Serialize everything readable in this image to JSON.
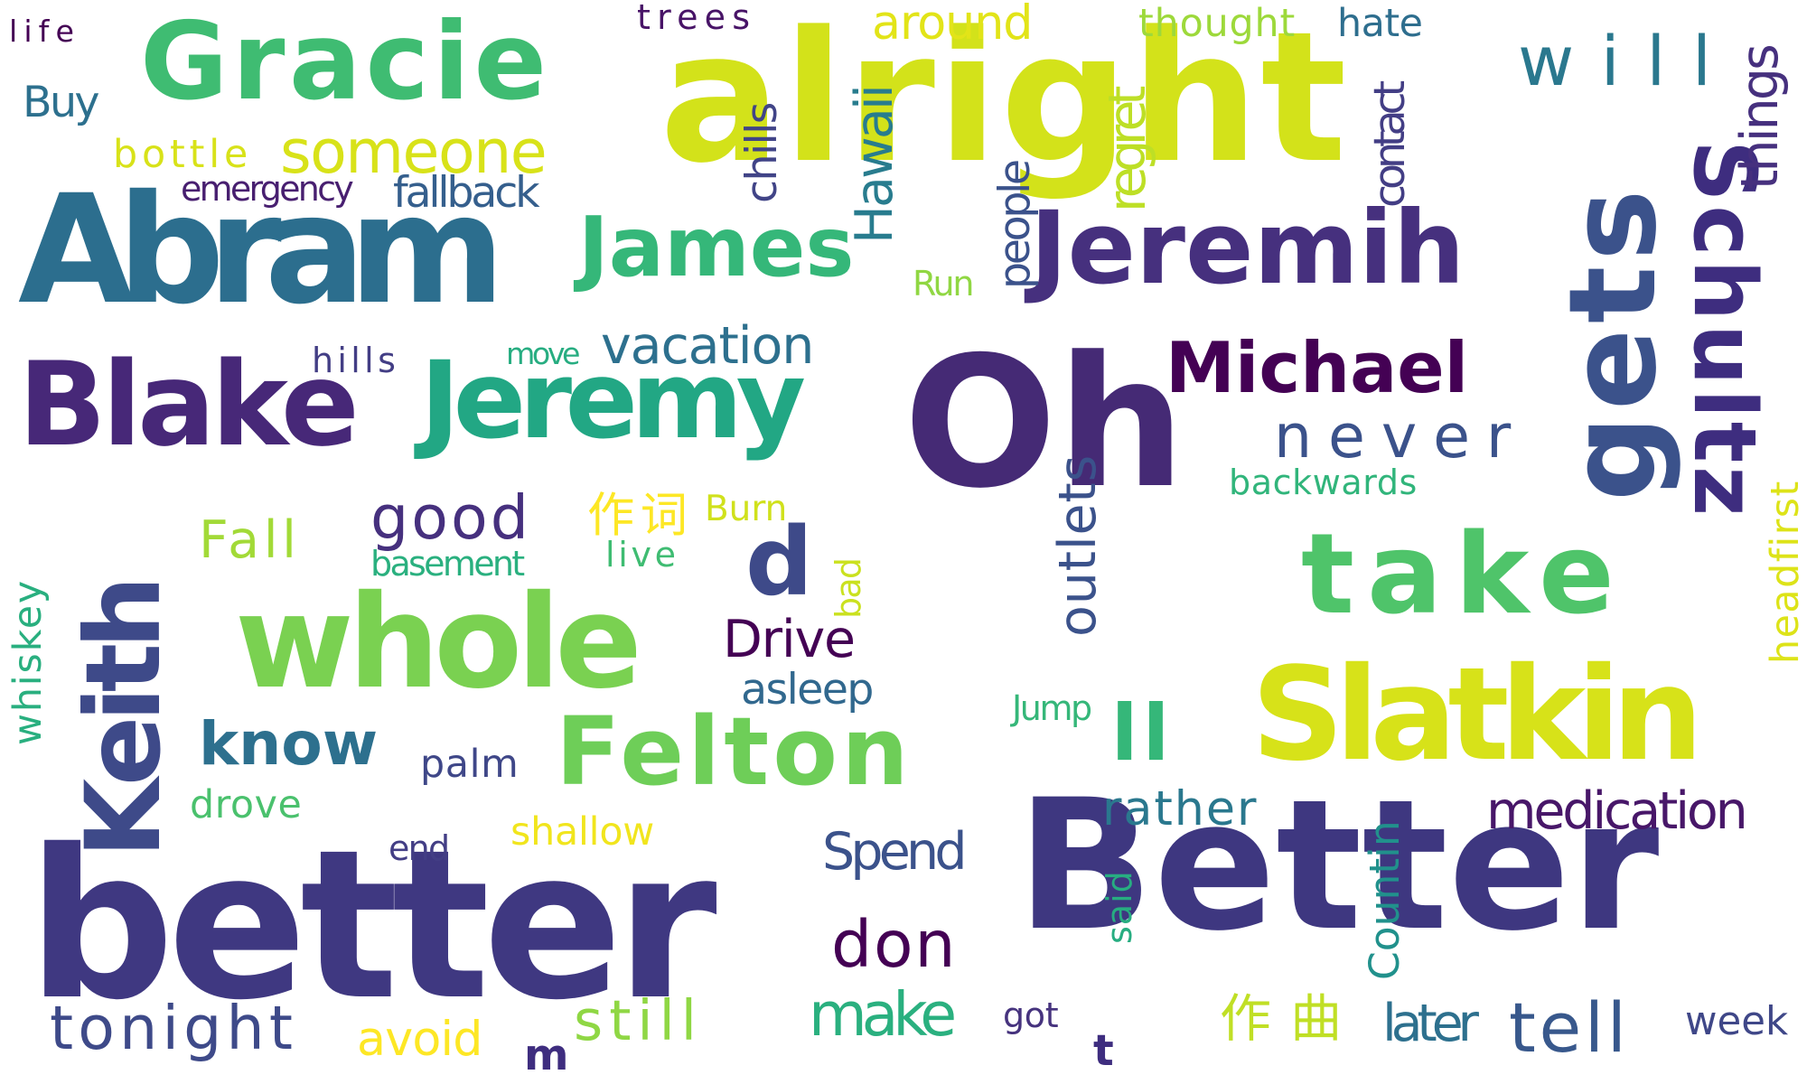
{
  "palette": {
    "dark_purple": "#440154",
    "indigo": "#3e2b7c",
    "slate_blue": "#3b528b",
    "steel_blue": "#2c718e",
    "teal": "#21918c",
    "sea_green": "#27ad81",
    "green": "#5dc863",
    "lime": "#aadc32",
    "yellow": "#dde318",
    "gold": "#fde725"
  },
  "words": [
    {
      "text": "Oh",
      "color": "#452a75"
    },
    {
      "text": "alright",
      "color": "#d3e21a"
    },
    {
      "text": "Better",
      "color": "#3e3780"
    },
    {
      "text": "better",
      "color": "#3f3881"
    },
    {
      "text": "Abram",
      "color": "#2c6e8e"
    },
    {
      "text": "Gracie",
      "color": "#3fbc72"
    },
    {
      "text": "Blake",
      "color": "#472878"
    },
    {
      "text": "Jeremy",
      "color": "#22a784"
    },
    {
      "text": "James",
      "color": "#35b779"
    },
    {
      "text": "Jeremih",
      "color": "#46307e"
    },
    {
      "text": "whole",
      "color": "#7ad151"
    },
    {
      "text": "take",
      "color": "#4fc46a"
    },
    {
      "text": "Slatkin",
      "color": "#d7e219"
    },
    {
      "text": "Felton",
      "color": "#6ece58"
    },
    {
      "text": "Keith",
      "color": "#3e4a89"
    },
    {
      "text": "gets",
      "color": "#3b528b"
    },
    {
      "text": "Schultz",
      "color": "#3e2d7f"
    },
    {
      "text": "Michael",
      "color": "#440154"
    },
    {
      "text": "know",
      "color": "#2d708e"
    },
    {
      "text": "someone",
      "color": "#d8e219"
    },
    {
      "text": "will",
      "color": "#2a788e"
    },
    {
      "text": "never",
      "color": "#3b528b"
    },
    {
      "text": "good",
      "color": "#46307e"
    },
    {
      "text": "tonight",
      "color": "#3e4a89"
    },
    {
      "text": "tell",
      "color": "#38588c"
    },
    {
      "text": "don",
      "color": "#440154"
    },
    {
      "text": "make",
      "color": "#2ab07f"
    },
    {
      "text": "vacation",
      "color": "#2d708e"
    },
    {
      "text": "Drive",
      "color": "#440154"
    },
    {
      "text": "medication",
      "color": "#481769"
    },
    {
      "text": "rather",
      "color": "#2a788e"
    },
    {
      "text": "Spend",
      "color": "#3b528b"
    },
    {
      "text": "week",
      "color": "#3f4788"
    },
    {
      "text": "later",
      "color": "#2d708e"
    },
    {
      "text": "Fall",
      "color": "#a2da37"
    },
    {
      "text": "Burn",
      "color": "#d0e11c"
    },
    {
      "text": "作词",
      "color": "#fde725"
    },
    {
      "text": "作曲",
      "color": "#c0df25"
    },
    {
      "text": "asleep",
      "color": "#31688e"
    },
    {
      "text": "palm",
      "color": "#3f4788"
    },
    {
      "text": "drove",
      "color": "#4ac16d"
    },
    {
      "text": "shallow",
      "color": "#f1e51d"
    },
    {
      "text": "end",
      "color": "#433e85"
    },
    {
      "text": "avoid",
      "color": "#fde725"
    },
    {
      "text": "still",
      "color": "#8fd744"
    },
    {
      "text": "got",
      "color": "#46337e"
    },
    {
      "text": "basement",
      "color": "#2ab07f"
    },
    {
      "text": "live",
      "color": "#3fbc72"
    },
    {
      "text": "backwards",
      "color": "#31b57b"
    },
    {
      "text": "fallback",
      "color": "#355f8d"
    },
    {
      "text": "emergency",
      "color": "#481f70"
    },
    {
      "text": "bottle",
      "color": "#d8e219"
    },
    {
      "text": "life",
      "color": "#440154"
    },
    {
      "text": "trees",
      "color": "#481467"
    },
    {
      "text": "around",
      "color": "#e2e418"
    },
    {
      "text": "thought",
      "color": "#9dd93b"
    },
    {
      "text": "hate",
      "color": "#2e6e8e"
    },
    {
      "text": "Buy",
      "color": "#2d708e"
    },
    {
      "text": "hills",
      "color": "#433e85"
    },
    {
      "text": "move",
      "color": "#27ad81"
    },
    {
      "text": "Run",
      "color": "#90d743"
    },
    {
      "text": "Jump",
      "color": "#35b779"
    },
    {
      "text": "chills",
      "color": "#414487"
    },
    {
      "text": "Hawaii",
      "color": "#287c8e"
    },
    {
      "text": "people",
      "color": "#3b528b"
    },
    {
      "text": "regret",
      "color": "#bddf26"
    },
    {
      "text": "contact",
      "color": "#433e85"
    },
    {
      "text": "things",
      "color": "#46307e"
    },
    {
      "text": "outlets",
      "color": "#3b528b"
    },
    {
      "text": "bad",
      "color": "#cae11f"
    },
    {
      "text": "Countin",
      "color": "#21918c"
    },
    {
      "text": "said",
      "color": "#27ad81"
    },
    {
      "text": "headfirst",
      "color": "#dde318"
    },
    {
      "text": "whiskey",
      "color": "#29af7f"
    },
    {
      "text": "d",
      "color": "#3e4a89"
    },
    {
      "text": "ll",
      "color": "#35b779"
    },
    {
      "text": "m",
      "color": "#3e2d7f"
    },
    {
      "text": "t",
      "color": "#3e2d7f"
    }
  ]
}
